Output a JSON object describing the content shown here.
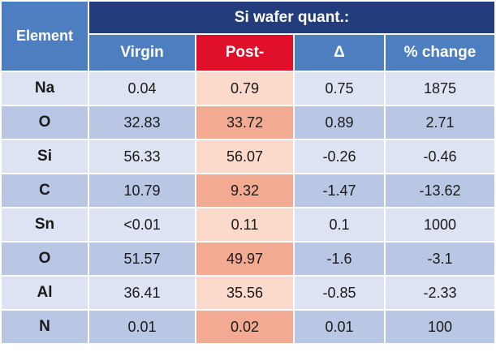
{
  "table": {
    "element_header": "Element",
    "group_header": "Si wafer quant.:",
    "columns": [
      "Virgin",
      "Post-",
      "Δ",
      "% change"
    ],
    "rows": [
      {
        "element": "Na",
        "virgin": "0.04",
        "post": "0.79",
        "delta": "0.75",
        "pct": "1875"
      },
      {
        "element": "O",
        "virgin": "32.83",
        "post": "33.72",
        "delta": "0.89",
        "pct": "2.71"
      },
      {
        "element": "Si",
        "virgin": "56.33",
        "post": "56.07",
        "delta": "-0.26",
        "pct": "-0.46"
      },
      {
        "element": "C",
        "virgin": "10.79",
        "post": "9.32",
        "delta": "-1.47",
        "pct": "-13.62"
      },
      {
        "element": "Sn",
        "virgin": "<0.01",
        "post": "0.11",
        "delta": "0.1",
        "pct": "1000"
      },
      {
        "element": "O",
        "virgin": "51.57",
        "post": "49.97",
        "delta": "-1.6",
        "pct": "-3.1"
      },
      {
        "element": "Al",
        "virgin": "36.41",
        "post": "35.56",
        "delta": "-0.85",
        "pct": "-2.33"
      },
      {
        "element": "N",
        "virgin": "0.01",
        "post": "0.02",
        "delta": "0.01",
        "pct": "100"
      }
    ]
  },
  "colors": {
    "header_dark": "#233d7c",
    "header_light": "#4d7fc0",
    "post_header": "#e0102a",
    "row_light": "#dde3f2",
    "row_dark": "#b9c6e4",
    "post_light": "#fbd9cb",
    "post_dark": "#f2ab92"
  }
}
